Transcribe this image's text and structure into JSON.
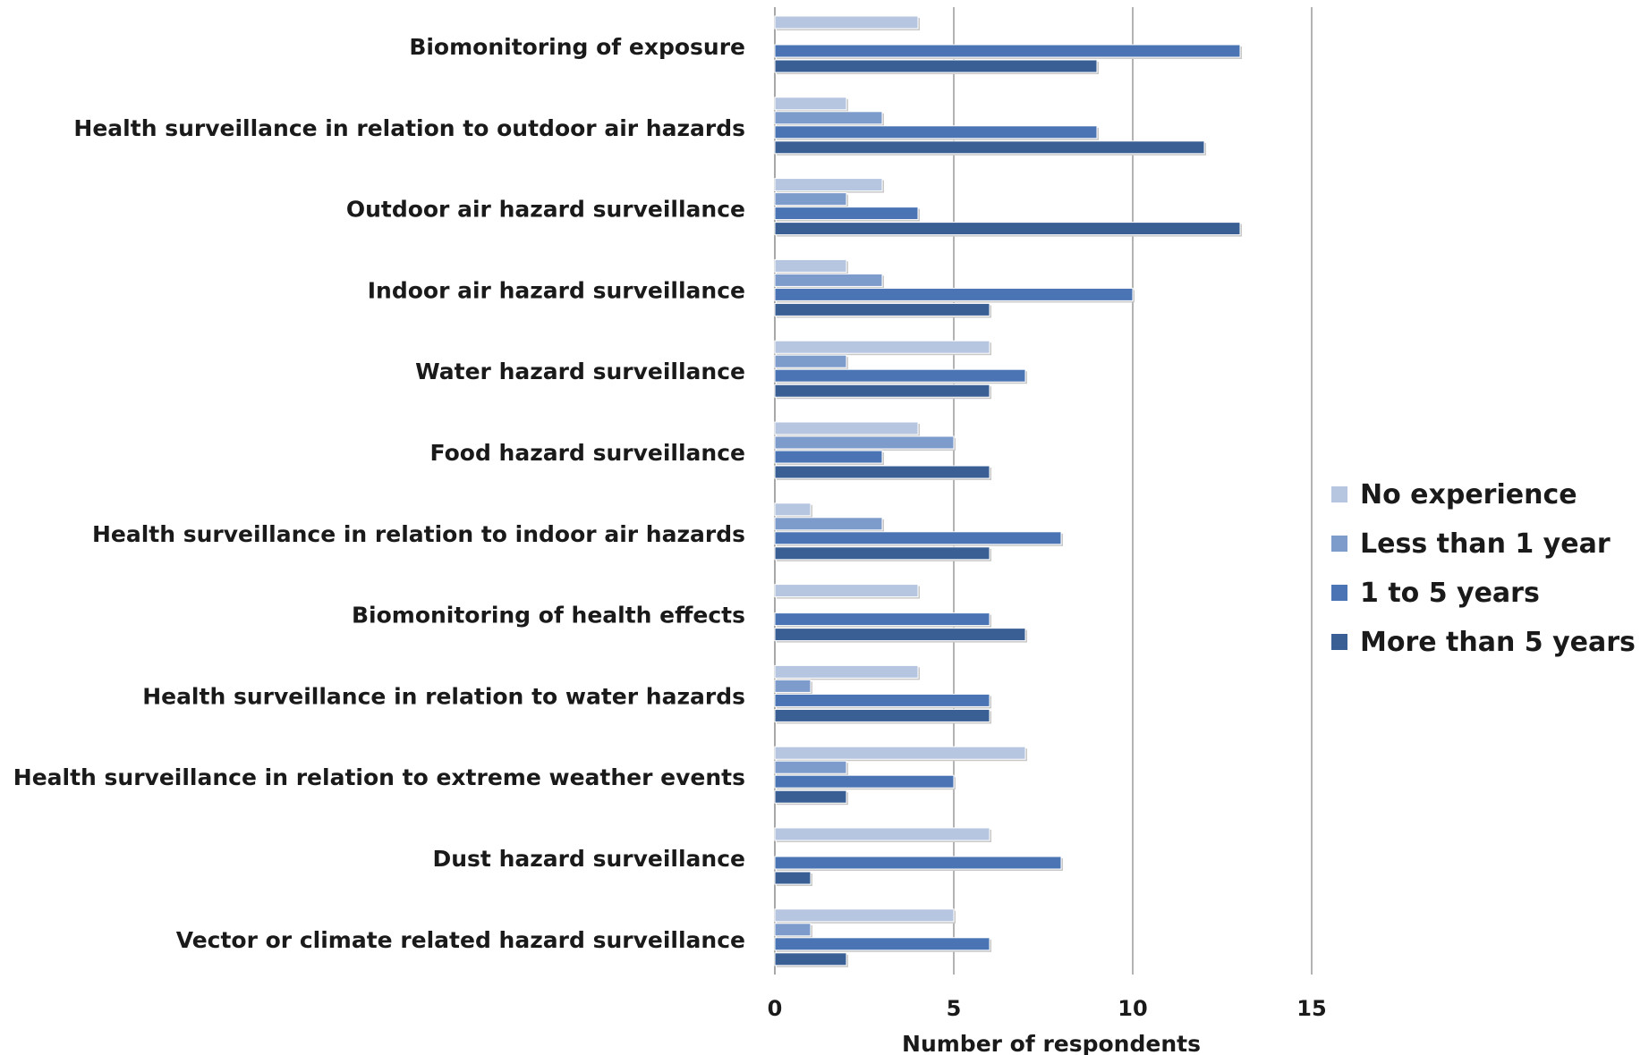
{
  "chart_data": {
    "type": "bar",
    "orientation": "horizontal",
    "title": "",
    "xlabel": "Number of respondents",
    "ylabel": "",
    "xlim": [
      0,
      15
    ],
    "x_ticks": [
      0,
      5,
      10,
      15
    ],
    "grid": "vertical lines",
    "legend_position": "right",
    "categories": [
      "Biomonitoring of exposure",
      "Health surveillance in relation to outdoor air hazards",
      "Outdoor air hazard surveillance",
      "Indoor air hazard surveillance",
      "Water hazard surveillance",
      "Food hazard surveillance",
      "Health surveillance in relation to indoor air hazards",
      "Biomonitoring of health effects",
      "Health surveillance in relation to water hazards",
      "Health surveillance in relation to extreme weather events",
      "Dust hazard surveillance",
      "Vector or climate related hazard surveillance"
    ],
    "series": [
      {
        "name": "No experience",
        "color": "#b6c5e0",
        "values": [
          4,
          2,
          3,
          2,
          6,
          4,
          1,
          4,
          4,
          7,
          6,
          5
        ]
      },
      {
        "name": "Less than 1 year",
        "color": "#7d9bcb",
        "values": [
          0,
          3,
          2,
          3,
          2,
          5,
          3,
          0,
          1,
          2,
          0,
          1
        ]
      },
      {
        "name": "1 to 5 years",
        "color": "#4a74b4",
        "values": [
          13,
          9,
          4,
          10,
          7,
          3,
          8,
          6,
          6,
          5,
          8,
          6
        ]
      },
      {
        "name": "More than 5 years",
        "color": "#3a5f95",
        "values": [
          9,
          12,
          13,
          6,
          6,
          6,
          6,
          7,
          6,
          2,
          1,
          2
        ]
      }
    ]
  }
}
